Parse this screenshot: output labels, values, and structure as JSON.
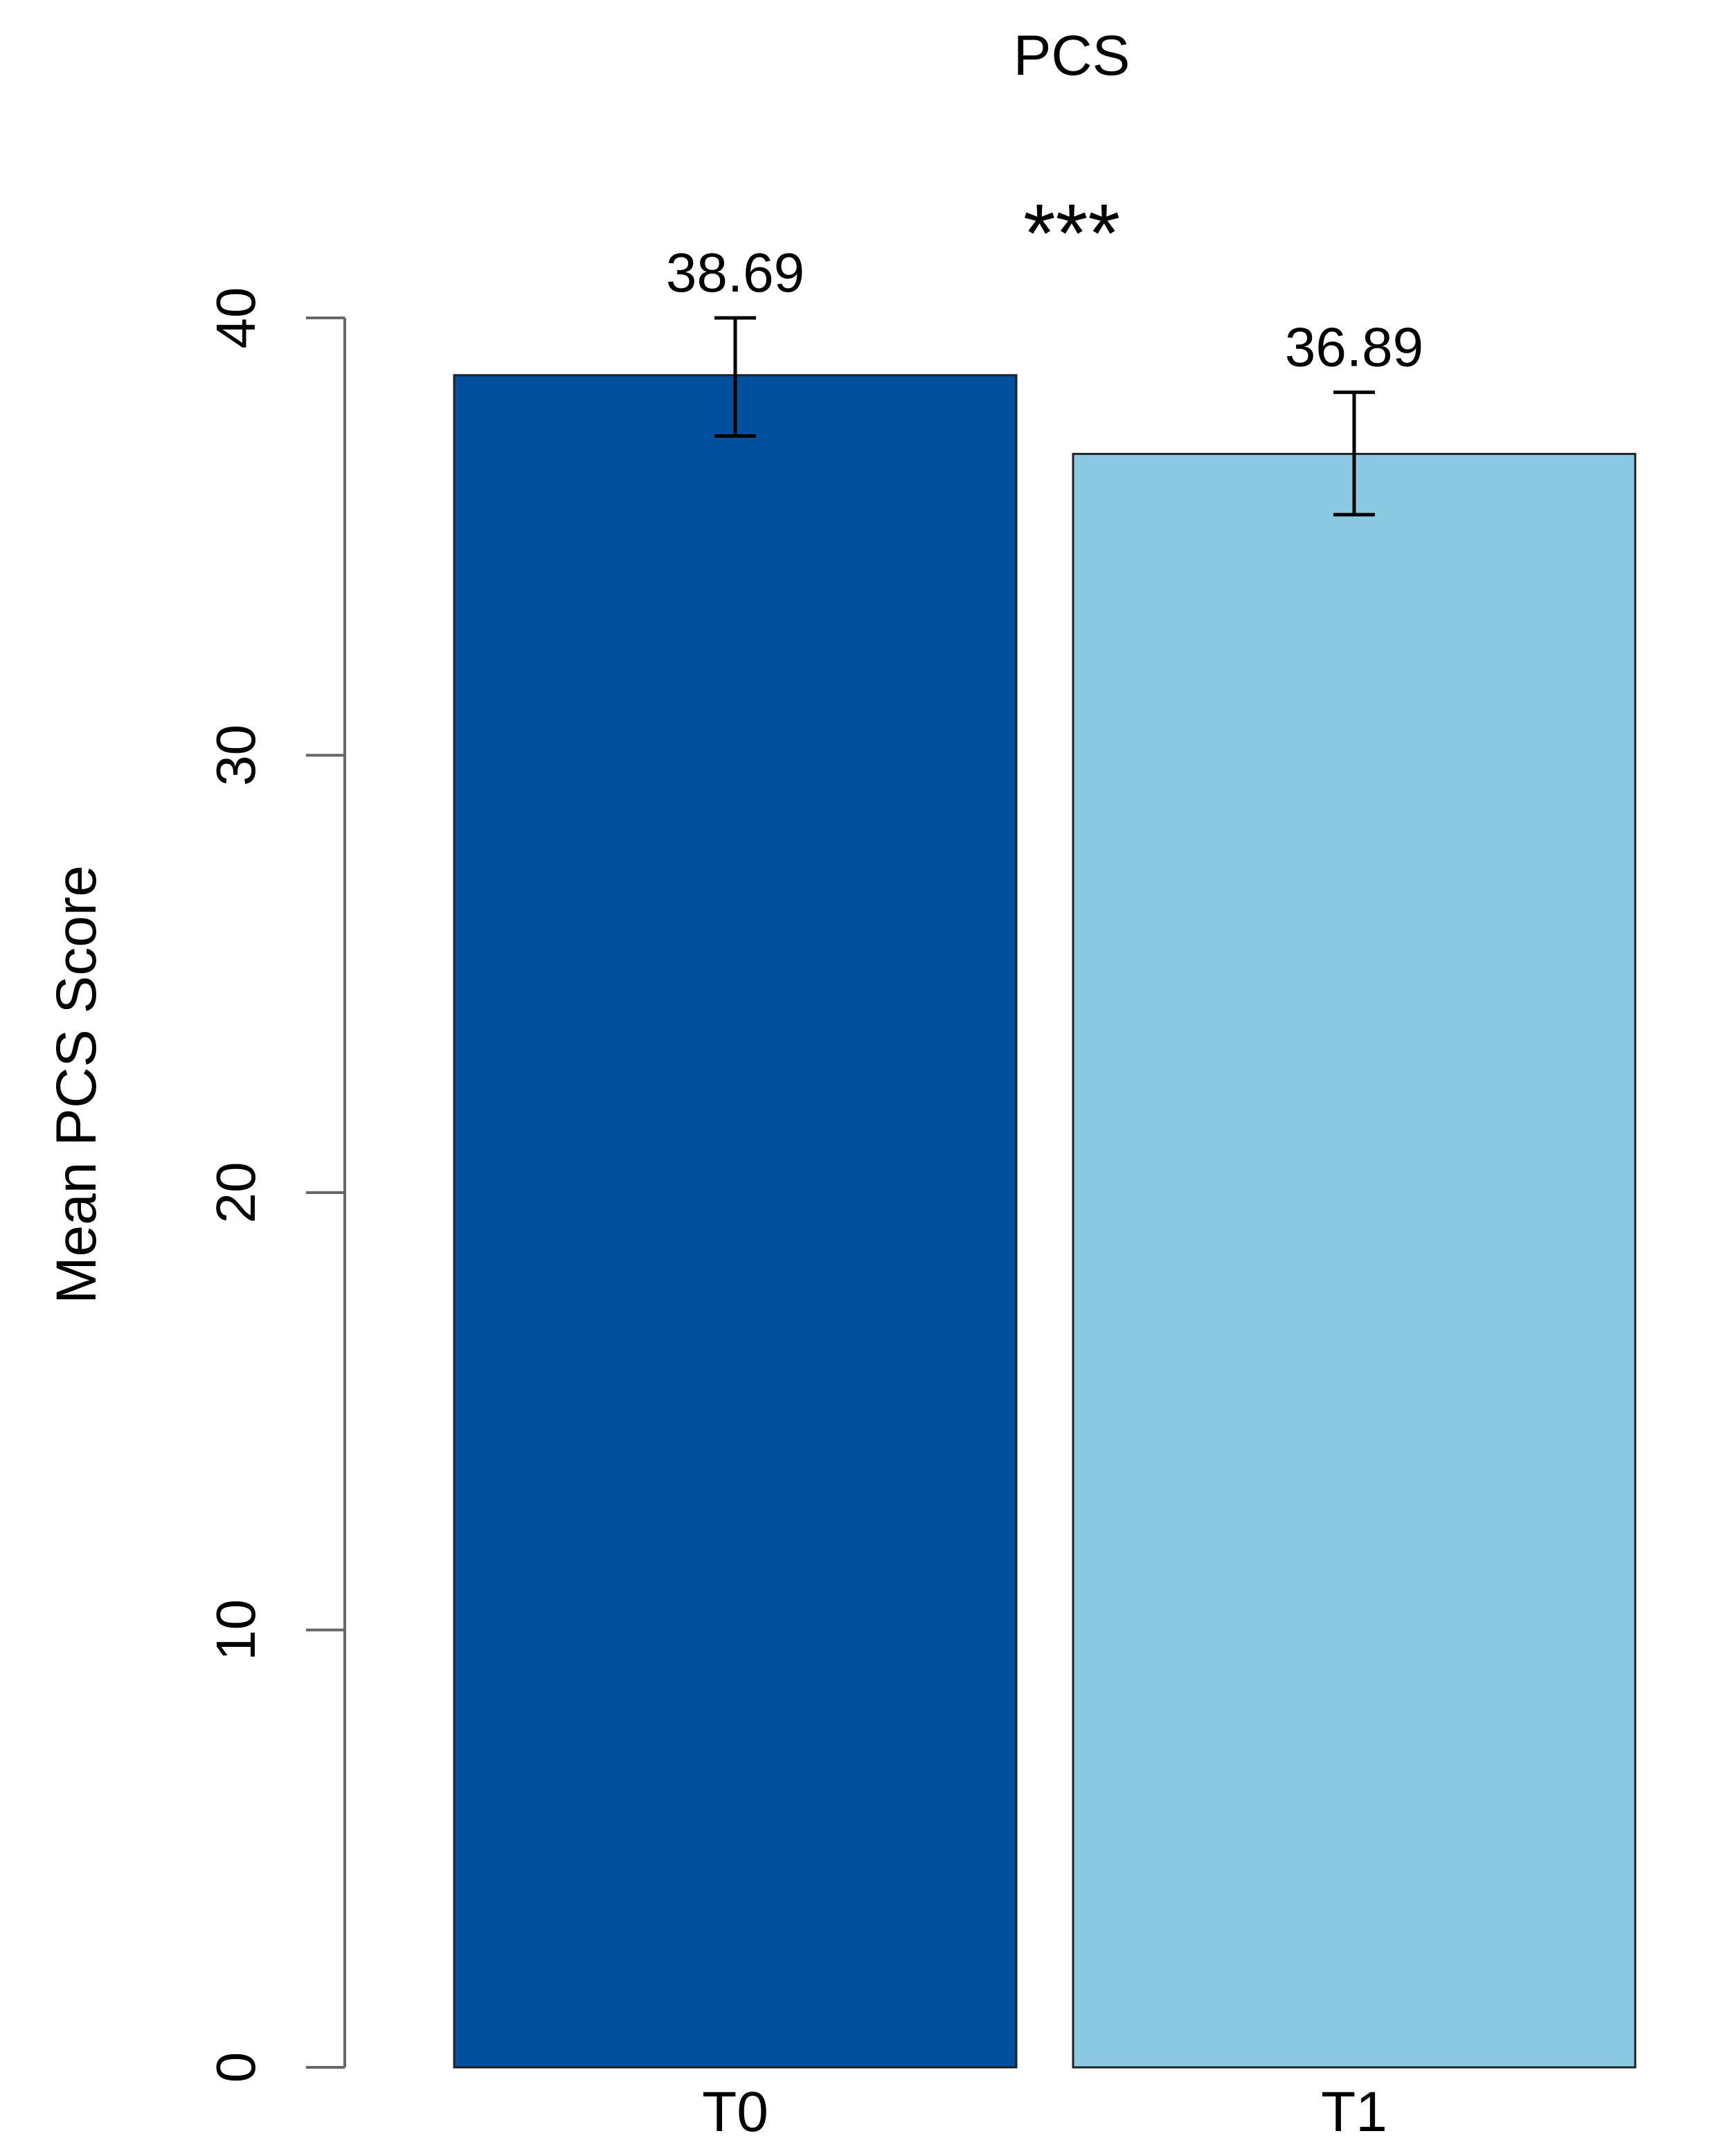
{
  "chart_data": {
    "type": "bar",
    "title": "PCS",
    "xlabel": "",
    "ylabel": "Mean PCS Score",
    "categories": [
      "T0",
      "T1"
    ],
    "values": [
      38.69,
      36.89
    ],
    "value_labels": [
      "38.69",
      "36.89"
    ],
    "error_bars": [
      {
        "low": 37.3,
        "high": 40.0
      },
      {
        "low": 35.5,
        "high": 38.3
      }
    ],
    "ylim": [
      0,
      40
    ],
    "yticks": [
      0,
      10,
      20,
      30,
      40
    ],
    "ytick_labels": [
      "0",
      "10",
      "20",
      "30",
      "40"
    ],
    "significance": "***",
    "grid": false,
    "colors": [
      "#00509e",
      "#8bc9e3"
    ]
  }
}
